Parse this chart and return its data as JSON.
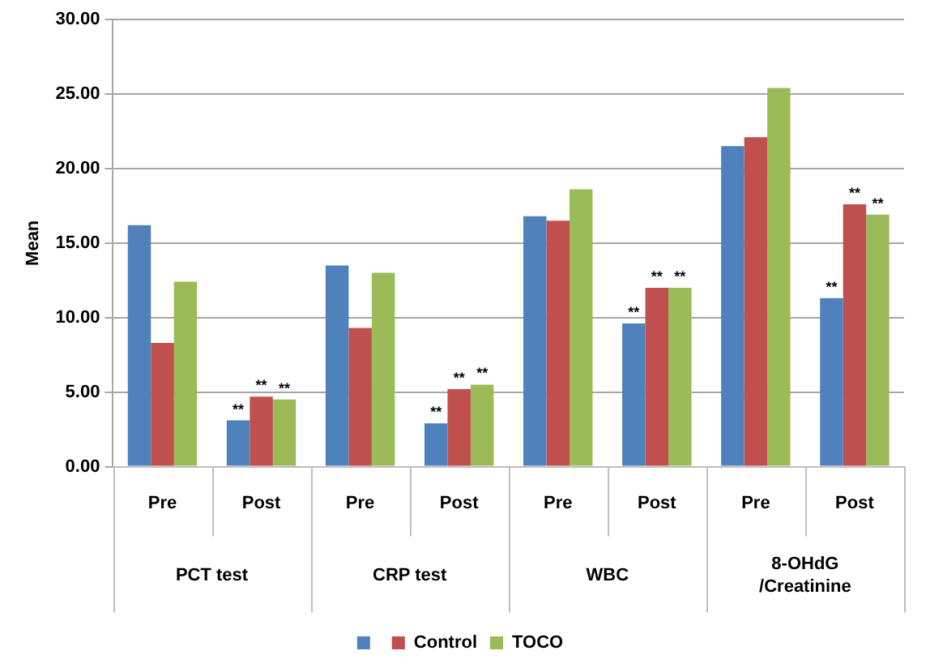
{
  "chart_data": {
    "type": "bar",
    "ylabel": "Mean",
    "categories": [
      "Pre",
      "Post",
      "Pre",
      "Post",
      "Pre",
      "Post",
      "Pre",
      "Post"
    ],
    "annotations": [
      "PCT test",
      "CRP test",
      "WBC",
      "8-OHdG /Creatinine"
    ],
    "series": [
      {
        "color": "#4f81bd",
        "values": [
          16.2,
          3.1,
          13.5,
          2.9,
          16.8,
          9.6,
          21.5,
          11.3
        ],
        "value_labels": [
          null,
          "**",
          null,
          "**",
          null,
          "**",
          null,
          "**"
        ]
      },
      {
        "name": "Control",
        "color": "#c0504d",
        "values": [
          8.3,
          4.7,
          9.3,
          5.2,
          16.5,
          12.0,
          22.1,
          17.6
        ],
        "value_labels": [
          null,
          "**",
          null,
          "**",
          null,
          "**",
          null,
          "**"
        ]
      },
      {
        "name": "TOCO",
        "color": "#9bbb59",
        "values": [
          12.4,
          4.5,
          13.0,
          5.5,
          18.6,
          12.0,
          25.4,
          16.9
        ],
        "value_labels": [
          null,
          "**",
          null,
          "**",
          null,
          "**",
          null,
          "**"
        ]
      }
    ],
    "ylim": [
      0,
      30
    ],
    "yticks": [
      {
        "value": 0,
        "label": "0.00"
      },
      {
        "value": 5,
        "label": "5.00"
      },
      {
        "value": 10,
        "label": "10.00"
      },
      {
        "value": 15,
        "label": "15.00"
      },
      {
        "value": 20,
        "label": "20.00"
      },
      {
        "value": 25,
        "label": "25.00"
      },
      {
        "value": 30,
        "label": "30.00"
      }
    ],
    "grid": "y",
    "legend": "bottom"
  }
}
